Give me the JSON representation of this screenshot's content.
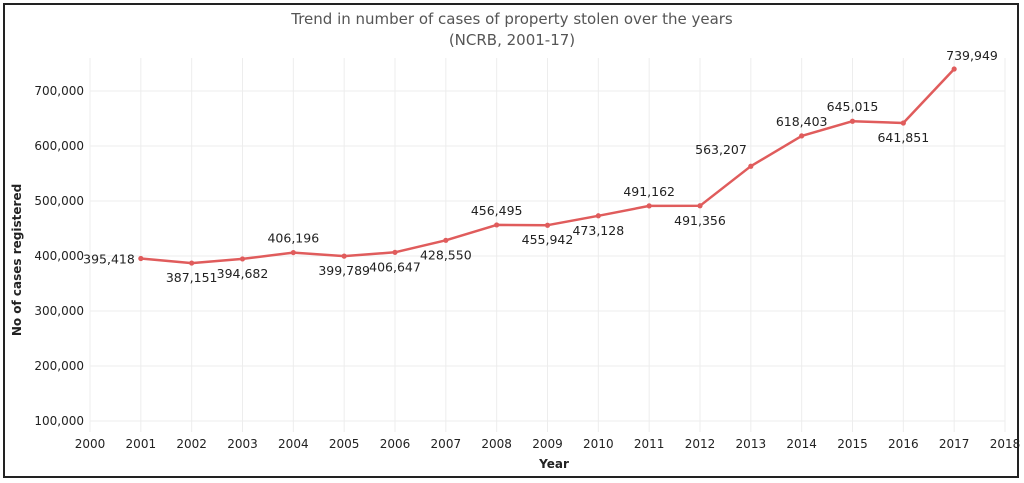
{
  "chart_data": {
    "type": "line",
    "title": "Trend in number of cases of property stolen over the years",
    "subtitle": "(NCRB, 2001-17)",
    "xlabel": "Year",
    "ylabel": "No of cases registered",
    "x_ticks": [
      "2000",
      "2001",
      "2002",
      "2003",
      "2004",
      "2005",
      "2006",
      "2007",
      "2008",
      "2009",
      "2010",
      "2011",
      "2012",
      "2013",
      "2014",
      "2015",
      "2016",
      "2017",
      "2018"
    ],
    "y_ticks": [
      "100,000",
      "200,000",
      "300,000",
      "400,000",
      "500,000",
      "600,000",
      "700,000"
    ],
    "xlim": [
      2000,
      2018
    ],
    "ylim": [
      80000,
      760000
    ],
    "grid": true,
    "color": "#e05c5c",
    "series": [
      {
        "x": [
          2001,
          2002,
          2003,
          2004,
          2005,
          2006,
          2007,
          2008,
          2009,
          2010,
          2011,
          2012,
          2013,
          2014,
          2015,
          2016,
          2017
        ],
        "values": [
          395418,
          387151,
          394682,
          406196,
          399789,
          406647,
          428550,
          456495,
          455942,
          473128,
          491162,
          491356,
          563207,
          618403,
          645015,
          641851,
          739949
        ],
        "labels": [
          "395,418",
          "387,151",
          "394,682",
          "406,196",
          "399,789",
          "406,647",
          "428,550",
          "456,495",
          "455,942",
          "473,128",
          "491,162",
          "491,356",
          "563,207",
          "618,403",
          "645,015",
          "641,851",
          "739,949"
        ]
      }
    ]
  }
}
